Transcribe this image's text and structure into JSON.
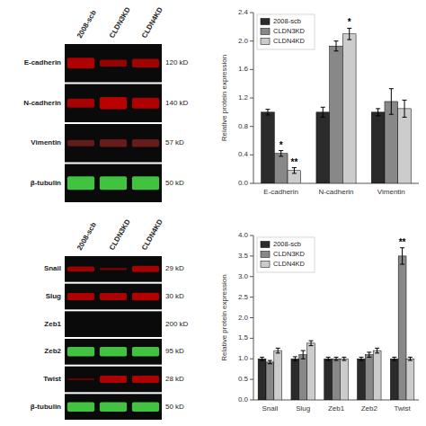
{
  "chart_data": [
    {
      "type": "blot",
      "categories": [
        "2008-scb",
        "CLDN3KD",
        "CLDN4KD"
      ],
      "series": [
        {
          "name": "E-cadherin",
          "label": "120 kD",
          "color": "#cc0000",
          "values": [
            0.7,
            0.45,
            0.55
          ]
        },
        {
          "name": "N-cadherin",
          "label": "140 kD",
          "color": "#cc0000",
          "values": [
            0.6,
            0.8,
            0.7
          ]
        },
        {
          "name": "Vimentin",
          "label": "57 kD",
          "color": "#882222",
          "values": [
            0.4,
            0.5,
            0.5
          ]
        },
        {
          "name": "β-tubulin",
          "label": "50 kD",
          "color": "#44cc44",
          "values": [
            0.9,
            0.9,
            0.9
          ]
        }
      ]
    },
    {
      "type": "blot",
      "categories": [
        "2008-scb",
        "CLDN3KD",
        "CLDN4KD"
      ],
      "series": [
        {
          "name": "Snail",
          "label": "29 kD",
          "color": "#cc0000",
          "values": [
            0.5,
            0.2,
            0.6
          ]
        },
        {
          "name": "Slug",
          "label": "30 kD",
          "color": "#cc0000",
          "values": [
            0.7,
            0.7,
            0.75
          ]
        },
        {
          "name": "Zeb1",
          "label": "200 kD",
          "color": "#220000",
          "values": [
            0.0,
            0.0,
            0.0
          ]
        },
        {
          "name": "Zeb2",
          "label": "95 kD",
          "color": "#44cc44",
          "values": [
            0.9,
            0.9,
            0.9
          ]
        },
        {
          "name": "Twist",
          "label": "28 kD",
          "color": "#cc0000",
          "values": [
            0.15,
            0.7,
            0.7
          ]
        },
        {
          "name": "β-tubulin",
          "label": "50 kD",
          "color": "#44cc44",
          "values": [
            0.9,
            0.9,
            0.9
          ]
        }
      ]
    },
    {
      "type": "bar",
      "categories": [
        "E-cadherin",
        "N-cadherin",
        "Vimentin"
      ],
      "ylabel": "Relative protein expression",
      "ylim": [
        0.0,
        2.4
      ],
      "yticks": [
        {
          "value": 0.0,
          "label": "0.0"
        },
        0.4,
        0.8,
        1.2,
        1.6,
        {
          "value": 2.0,
          "label": "2.0"
        },
        2.4
      ],
      "legend": "upper left",
      "series": [
        {
          "name": "2008-scb",
          "color": "#2b2b2b",
          "values": [
            1.0,
            1.0,
            1.0
          ],
          "errors": [
            0.04,
            0.07,
            0.05
          ]
        },
        {
          "name": "CLDN3KD",
          "color": "#888888",
          "values": [
            0.42,
            1.93,
            1.15
          ],
          "errors": [
            0.04,
            0.07,
            0.18
          ]
        },
        {
          "name": "CLDN4KD",
          "color": "#cccccc",
          "values": [
            0.18,
            2.1,
            1.05
          ],
          "errors": [
            0.04,
            0.08,
            0.12
          ]
        }
      ],
      "annotations": [
        {
          "text": "*",
          "series": 1,
          "category": 0
        },
        {
          "text": "**",
          "series": 2,
          "category": 0
        },
        {
          "text": "*",
          "series": 2,
          "category": 1
        }
      ]
    },
    {
      "type": "bar",
      "categories": [
        "Snail",
        "Slug",
        "Zeb1",
        "Zeb2",
        "Twist"
      ],
      "ylabel": "Relative protein expression",
      "ylim": [
        0.0,
        4.0
      ],
      "yticks": [
        {
          "value": 0.0,
          "label": "0.0"
        },
        0.5,
        {
          "value": 1.0,
          "label": "1.0"
        },
        1.5,
        {
          "value": 2.0,
          "label": "2.0"
        },
        2.5,
        {
          "value": 3.0,
          "label": "3.0"
        },
        3.5,
        {
          "value": 4.0,
          "label": "4.0"
        }
      ],
      "legend": "upper left",
      "series": [
        {
          "name": "2008-scb",
          "color": "#2b2b2b",
          "values": [
            1.0,
            1.0,
            1.0,
            1.0,
            1.0
          ],
          "errors": [
            0.04,
            0.05,
            0.04,
            0.04,
            0.04
          ]
        },
        {
          "name": "CLDN3KD",
          "color": "#888888",
          "values": [
            0.92,
            1.1,
            1.0,
            1.1,
            3.5
          ],
          "errors": [
            0.04,
            0.1,
            0.04,
            0.06,
            0.2
          ]
        },
        {
          "name": "CLDN4KD",
          "color": "#cccccc",
          "values": [
            1.2,
            1.38,
            1.0,
            1.2,
            1.0
          ],
          "errors": [
            0.06,
            0.06,
            0.04,
            0.06,
            0.04
          ]
        }
      ],
      "annotations": [
        {
          "text": "**",
          "series": 1,
          "category": 4
        }
      ]
    }
  ]
}
